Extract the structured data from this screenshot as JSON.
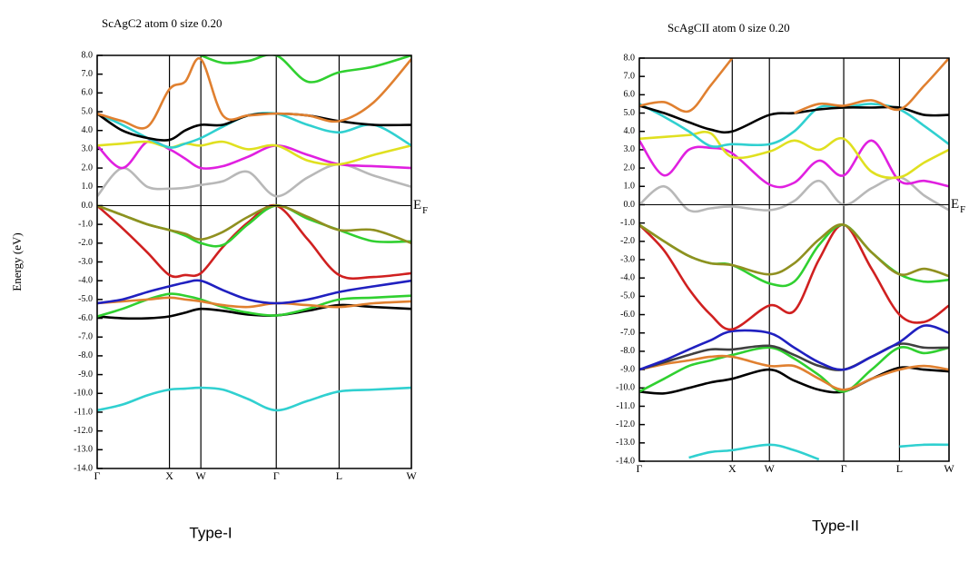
{
  "chart_data": [
    {
      "type": "line",
      "title": "ScAgC2 atom  0    size 0.20",
      "ylabel": "Energy (eV)",
      "caption": "Type-I",
      "fermi_level": 0,
      "fermi_label": "E",
      "fermi_sub": "F",
      "xlim": [
        0,
        100
      ],
      "ylim": [
        -14,
        8
      ],
      "xticks": [
        {
          "value": 0,
          "label": "Γ"
        },
        {
          "value": 23,
          "label": "X"
        },
        {
          "value": 33,
          "label": "W"
        },
        {
          "value": 57,
          "label": "Γ"
        },
        {
          "value": 77,
          "label": "L"
        },
        {
          "value": 100,
          "label": "W"
        }
      ],
      "yticks": [
        {
          "value": 8,
          "label": "8.0"
        },
        {
          "value": 7,
          "label": "7.0"
        },
        {
          "value": 6,
          "label": "6.0"
        },
        {
          "value": 5,
          "label": "5.0"
        },
        {
          "value": 4,
          "label": "4.0"
        },
        {
          "value": 3,
          "label": "3.0"
        },
        {
          "value": 2,
          "label": "2.0"
        },
        {
          "value": 1,
          "label": "1.0"
        },
        {
          "value": 0,
          "label": "0.0"
        },
        {
          "value": -1,
          "label": "-1.0"
        },
        {
          "value": -2,
          "label": "-2.0"
        },
        {
          "value": -3,
          "label": "-3.0"
        },
        {
          "value": -4,
          "label": "-4.0"
        },
        {
          "value": -5,
          "label": "-5.0"
        },
        {
          "value": -6,
          "label": "-6.0"
        },
        {
          "value": -7,
          "label": "-7.0"
        },
        {
          "value": -8,
          "label": "-8.0"
        },
        {
          "value": -9,
          "label": "-9.0"
        },
        {
          "value": -10,
          "label": "-10.0"
        },
        {
          "value": -11,
          "label": "-11.0"
        },
        {
          "value": -12,
          "label": "-12.0"
        },
        {
          "value": -13,
          "label": "-13.0"
        },
        {
          "value": -14,
          "label": "-14.0"
        }
      ],
      "x": [
        0,
        8,
        16,
        23,
        28,
        33,
        40,
        48,
        57,
        67,
        77,
        88,
        100
      ],
      "series": [
        {
          "color": "#30d0d0",
          "values": [
            -10.9,
            -10.6,
            -10.1,
            -9.8,
            -9.75,
            -9.7,
            -9.8,
            -10.3,
            -10.9,
            -10.4,
            -9.9,
            -9.8,
            -9.7
          ]
        },
        {
          "color": "#000000",
          "values": [
            -5.9,
            -6.0,
            -6.0,
            -5.9,
            -5.7,
            -5.5,
            -5.6,
            -5.8,
            -5.85,
            -5.6,
            -5.3,
            -5.4,
            -5.5
          ]
        },
        {
          "color": "#30d030",
          "values": [
            -5.9,
            -5.5,
            -5.0,
            -4.7,
            -4.8,
            -5.0,
            -5.4,
            -5.7,
            -5.85,
            -5.5,
            -5.0,
            -4.9,
            -4.8
          ]
        },
        {
          "color": "#e08030",
          "values": [
            -5.2,
            -5.1,
            -5.0,
            -4.9,
            -5.0,
            -5.1,
            -5.3,
            -5.4,
            -5.2,
            -5.3,
            -5.4,
            -5.2,
            -5.1
          ]
        },
        {
          "color": "#2020c0",
          "values": [
            -5.2,
            -5.0,
            -4.6,
            -4.3,
            -4.1,
            -4.0,
            -4.5,
            -5.0,
            -5.2,
            -5.0,
            -4.6,
            -4.3,
            -4.0
          ]
        },
        {
          "color": "#d02020",
          "values": [
            0,
            -1.2,
            -2.5,
            -3.7,
            -3.7,
            -3.6,
            -2.2,
            -0.9,
            0,
            -1.8,
            -3.7,
            -3.8,
            -3.6
          ]
        },
        {
          "color": "#30d030",
          "values": [
            0,
            -0.5,
            -1.0,
            -1.3,
            -1.6,
            -2.0,
            -2.1,
            -1.0,
            0,
            -0.7,
            -1.3,
            -1.9,
            -1.9
          ]
        },
        {
          "color": "#909020",
          "values": [
            0,
            -0.5,
            -1.0,
            -1.3,
            -1.5,
            -1.8,
            -1.4,
            -0.6,
            0,
            -0.6,
            -1.3,
            -1.3,
            -2.0
          ]
        },
        {
          "color": "#b8b8b8",
          "values": [
            0.5,
            2.0,
            1.0,
            0.9,
            0.95,
            1.1,
            1.3,
            1.8,
            0.5,
            1.5,
            2.2,
            1.6,
            1.0
          ]
        },
        {
          "color": "#e020e0",
          "values": [
            3.2,
            2.0,
            3.4,
            3.0,
            2.5,
            2.0,
            2.1,
            2.6,
            3.2,
            2.7,
            2.2,
            2.1,
            2.0
          ]
        },
        {
          "color": "#e0e020",
          "values": [
            3.2,
            3.3,
            3.4,
            3.1,
            3.3,
            3.2,
            3.4,
            3.0,
            3.2,
            2.4,
            2.2,
            2.7,
            3.2
          ]
        },
        {
          "color": "#30d0d0",
          "values": [
            4.9,
            4.3,
            3.6,
            3.1,
            3.3,
            3.6,
            4.2,
            4.8,
            4.9,
            4.3,
            3.9,
            4.3,
            3.2
          ]
        },
        {
          "color": "#000000",
          "values": [
            4.9,
            4.0,
            3.6,
            3.5,
            4.0,
            4.3,
            4.3,
            4.8,
            4.9,
            4.8,
            4.5,
            4.3,
            4.3
          ]
        },
        {
          "color": "#e08030",
          "values": [
            4.9,
            4.5,
            4.2,
            6.2,
            6.6,
            7.8,
            4.8,
            4.8,
            4.9,
            4.8,
            4.5,
            5.5,
            7.8
          ]
        },
        {
          "color": "#30d030",
          "values": [
            null,
            null,
            null,
            null,
            null,
            8.0,
            7.6,
            7.7,
            8.0,
            6.6,
            7.1,
            7.4,
            8.0
          ]
        }
      ]
    },
    {
      "type": "line",
      "title": "ScAgCII atom  0    size 0.20",
      "caption": "Type-II",
      "fermi_level": 0,
      "fermi_label": "E",
      "fermi_sub": "F",
      "xlim": [
        0,
        100
      ],
      "ylim": [
        -14,
        8
      ],
      "xticks": [
        {
          "value": 0,
          "label": "Γ"
        },
        {
          "value": 30,
          "label": "X"
        },
        {
          "value": 42,
          "label": "W"
        },
        {
          "value": 66,
          "label": "Γ"
        },
        {
          "value": 84,
          "label": "L"
        },
        {
          "value": 100,
          "label": "W"
        }
      ],
      "yticks": [
        {
          "value": 8,
          "label": "8.0"
        },
        {
          "value": 7,
          "label": "7.0"
        },
        {
          "value": 6,
          "label": "6.0"
        },
        {
          "value": 5,
          "label": "5.0"
        },
        {
          "value": 4,
          "label": "4.0"
        },
        {
          "value": 3,
          "label": "3.0"
        },
        {
          "value": 2,
          "label": "2.0"
        },
        {
          "value": 1,
          "label": "1.0"
        },
        {
          "value": 0,
          "label": "0.0"
        },
        {
          "value": -1,
          "label": "-1.0"
        },
        {
          "value": -2,
          "label": "-2.0"
        },
        {
          "value": -3,
          "label": "-3.0"
        },
        {
          "value": -4,
          "label": "-4.0"
        },
        {
          "value": -5,
          "label": "-5.0"
        },
        {
          "value": -6,
          "label": "-6.0"
        },
        {
          "value": -7,
          "label": "-7.0"
        },
        {
          "value": -8,
          "label": "-8.0"
        },
        {
          "value": -9,
          "label": "-9.0"
        },
        {
          "value": -10,
          "label": "-10.0"
        },
        {
          "value": -11,
          "label": "-11.0"
        },
        {
          "value": -12,
          "label": "-12.0"
        },
        {
          "value": -13,
          "label": "-13.0"
        },
        {
          "value": -14,
          "label": "-14.0"
        }
      ],
      "x": [
        0,
        8,
        16,
        23,
        30,
        42,
        50,
        58,
        66,
        75,
        84,
        92,
        100
      ],
      "series": [
        {
          "color": "#30d0d0",
          "values": [
            null,
            null,
            -13.8,
            -13.5,
            -13.4,
            -13.1,
            -13.4,
            -13.9,
            null,
            null,
            -13.2,
            -13.1,
            -13.1
          ]
        },
        {
          "color": "#000000",
          "values": [
            -10.2,
            -10.3,
            -10.0,
            -9.7,
            -9.5,
            -9.0,
            -9.6,
            -10.1,
            -10.2,
            -9.5,
            -8.9,
            -9.0,
            -9.1
          ]
        },
        {
          "color": "#30d030",
          "values": [
            -10.2,
            -9.5,
            -8.8,
            -8.5,
            -8.2,
            -7.8,
            -8.4,
            -9.3,
            -10.2,
            -9.0,
            -7.8,
            -8.1,
            -7.8
          ]
        },
        {
          "color": "#e08030",
          "values": [
            -9.0,
            -8.7,
            -8.5,
            -8.3,
            -8.3,
            -8.8,
            -8.8,
            -9.5,
            -10.1,
            -9.5,
            -9.0,
            -8.8,
            -9.0
          ]
        },
        {
          "color": "#404040",
          "values": [
            -9.0,
            -8.6,
            -8.2,
            -7.9,
            -7.9,
            -7.7,
            -8.2,
            -8.8,
            -9.0,
            -8.3,
            -7.6,
            -7.8,
            -7.8
          ]
        },
        {
          "color": "#2020c0",
          "values": [
            -9.0,
            -8.5,
            -7.9,
            -7.4,
            -6.9,
            -7.0,
            -7.8,
            -8.6,
            -9.0,
            -8.3,
            -7.5,
            -6.6,
            -7.0
          ]
        },
        {
          "color": "#d02020",
          "values": [
            -1.1,
            -2.5,
            -4.6,
            -6.0,
            -6.8,
            -5.5,
            -5.8,
            -3.0,
            -1.1,
            -3.5,
            -6.0,
            -6.4,
            -5.5
          ]
        },
        {
          "color": "#30d030",
          "values": [
            -1.1,
            -2.0,
            -2.8,
            -3.2,
            -3.3,
            -4.3,
            -4.2,
            -2.2,
            -1.1,
            -2.6,
            -3.8,
            -4.2,
            -4.1
          ]
        },
        {
          "color": "#909020",
          "values": [
            -1.1,
            -2.0,
            -2.8,
            -3.2,
            -3.3,
            -3.8,
            -3.2,
            -1.9,
            -1.1,
            -2.6,
            -3.8,
            -3.5,
            -3.9
          ]
        },
        {
          "color": "#b8b8b8",
          "values": [
            0,
            1.0,
            -0.3,
            -0.2,
            -0.1,
            -0.3,
            0.2,
            1.3,
            0,
            0.9,
            1.5,
            0.5,
            -0.3
          ]
        },
        {
          "color": "#e020e0",
          "values": [
            3.5,
            1.6,
            3.0,
            3.1,
            2.8,
            1.1,
            1.2,
            2.4,
            1.6,
            3.5,
            1.3,
            1.3,
            1.0
          ]
        },
        {
          "color": "#e0e020",
          "values": [
            3.6,
            3.7,
            3.8,
            3.9,
            2.6,
            2.9,
            3.5,
            3.0,
            3.6,
            1.8,
            1.5,
            2.3,
            3.0
          ]
        },
        {
          "color": "#30d0d0",
          "values": [
            5.5,
            4.8,
            4.0,
            3.2,
            3.3,
            3.3,
            4.0,
            5.3,
            5.3,
            5.5,
            5.2,
            4.3,
            3.3
          ]
        },
        {
          "color": "#000000",
          "values": [
            5.4,
            5.0,
            4.5,
            4.1,
            4.0,
            4.9,
            5.0,
            5.2,
            5.3,
            5.3,
            5.3,
            4.9,
            4.9
          ]
        },
        {
          "color": "#e08030",
          "values": [
            5.4,
            5.6,
            5.1,
            6.5,
            8.0,
            null,
            5.0,
            5.5,
            5.4,
            5.7,
            5.2,
            6.5,
            8.0
          ]
        }
      ]
    }
  ]
}
